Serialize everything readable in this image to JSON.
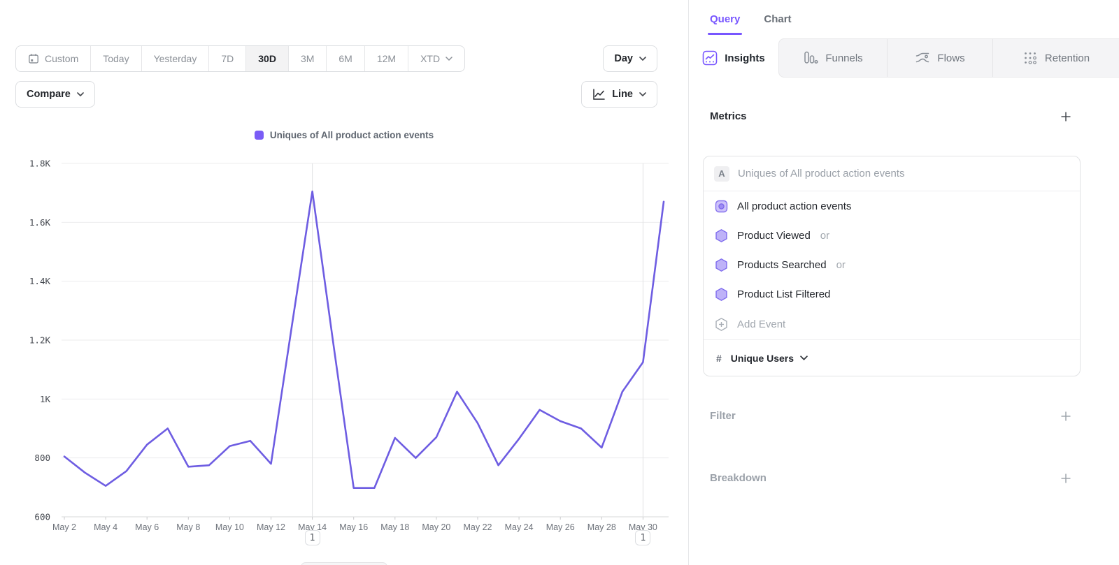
{
  "toolbar": {
    "date_ranges": [
      "Custom",
      "Today",
      "Yesterday",
      "7D",
      "30D",
      "3M",
      "6M",
      "12M",
      "XTD"
    ],
    "active_range": "30D",
    "custom_icon": "calendar-icon",
    "granularity_label": "Day",
    "compare_label": "Compare",
    "chart_type_label": "Line",
    "chart_type_icon": "line-chart-icon"
  },
  "chart_data": {
    "type": "line",
    "title": "Uniques of All product action events",
    "legend_position": "top",
    "grid": true,
    "line_color": "#6e5de2",
    "legend_color": "#7a5cf6",
    "ylim": [
      600,
      1800
    ],
    "yticks": [
      [
        600,
        "600"
      ],
      [
        800,
        "800"
      ],
      [
        1000,
        "1K"
      ],
      [
        1200,
        "1.2K"
      ],
      [
        1400,
        "1.4K"
      ],
      [
        1600,
        "1.6K"
      ],
      [
        1800,
        "1.8K"
      ]
    ],
    "xticks": [
      "May 2",
      "May 4",
      "May 6",
      "May 8",
      "May 10",
      "May 12",
      "May 14",
      "May 16",
      "May 18",
      "May 20",
      "May 22",
      "May 24",
      "May 26",
      "May 28",
      "May 30"
    ],
    "x": [
      "May 2",
      "May 3",
      "May 4",
      "May 5",
      "May 6",
      "May 7",
      "May 8",
      "May 9",
      "May 10",
      "May 11",
      "May 12",
      "May 13",
      "May 14",
      "May 15",
      "May 16",
      "May 17",
      "May 18",
      "May 19",
      "May 20",
      "May 21",
      "May 22",
      "May 23",
      "May 24",
      "May 25",
      "May 26",
      "May 27",
      "May 28",
      "May 29",
      "May 30",
      "May 31"
    ],
    "values": [
      805,
      750,
      705,
      755,
      845,
      900,
      770,
      775,
      840,
      858,
      780,
      1245,
      1705,
      1195,
      698,
      698,
      868,
      800,
      870,
      1025,
      918,
      775,
      865,
      963,
      925,
      900,
      835,
      1025,
      1125,
      1670
    ],
    "annotations": [
      {
        "label": "1",
        "day": 14,
        "date": "May 14"
      },
      {
        "label": "1",
        "day": 30,
        "date": "May 30"
      }
    ]
  },
  "query_panel": {
    "top_tabs": [
      {
        "label": "Query",
        "active": true
      },
      {
        "label": "Chart",
        "active": false
      }
    ],
    "report_tabs": [
      {
        "label": "Insights",
        "icon": "insights-chart-icon",
        "active": true
      },
      {
        "label": "Funnels",
        "icon": "funnels-bars-icon",
        "active": false
      },
      {
        "label": "Flows",
        "icon": "flows-waves-icon",
        "active": false
      },
      {
        "label": "Retention",
        "icon": "retention-dots-icon",
        "active": false
      }
    ],
    "metrics": {
      "heading": "Metrics",
      "series_badge": "A",
      "series_title": "Uniques of All product action events",
      "events": [
        {
          "name": "All product action events",
          "suffix": "",
          "icon": "all-events-icon"
        },
        {
          "name": "Product Viewed",
          "suffix": "or",
          "icon": "hexagon-icon"
        },
        {
          "name": "Products Searched",
          "suffix": "or",
          "icon": "hexagon-icon"
        },
        {
          "name": "Product List Filtered",
          "suffix": "",
          "icon": "hexagon-icon"
        }
      ],
      "add_event_label": "Add Event",
      "add_event_icon": "hexagon-plus-icon",
      "measurement_symbol": "#",
      "measurement_label": "Unique Users"
    },
    "filter_label": "Filter",
    "breakdown_label": "Breakdown"
  }
}
